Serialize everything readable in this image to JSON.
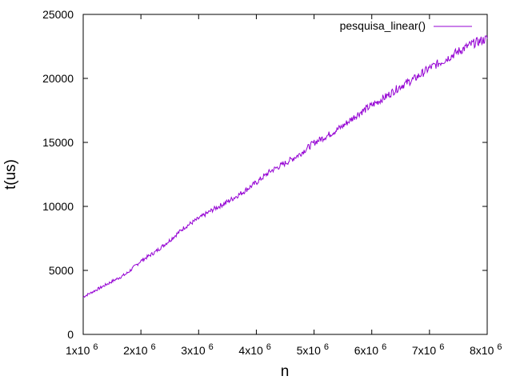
{
  "chart_data": {
    "type": "line",
    "xlabel": "n",
    "ylabel": "t(us)",
    "xlim": [
      1000000,
      8000000
    ],
    "ylim": [
      0,
      25000
    ],
    "x_ticks": [
      {
        "value": 1000000,
        "mantissa": "1x10",
        "exponent": "6"
      },
      {
        "value": 2000000,
        "mantissa": "2x10",
        "exponent": "6"
      },
      {
        "value": 3000000,
        "mantissa": "3x10",
        "exponent": "6"
      },
      {
        "value": 4000000,
        "mantissa": "4x10",
        "exponent": "6"
      },
      {
        "value": 5000000,
        "mantissa": "5x10",
        "exponent": "6"
      },
      {
        "value": 6000000,
        "mantissa": "6x10",
        "exponent": "6"
      },
      {
        "value": 7000000,
        "mantissa": "7x10",
        "exponent": "6"
      },
      {
        "value": 8000000,
        "mantissa": "8x10",
        "exponent": "6"
      }
    ],
    "y_ticks": [
      0,
      5000,
      10000,
      15000,
      20000,
      25000
    ],
    "y_tick_labels": [
      "0",
      "5000",
      "10000",
      "15000",
      "20000",
      "25000"
    ],
    "grid": false,
    "legend_position": "top-right",
    "series": [
      {
        "name": "pesquisa_linear()",
        "color": "#9400d3",
        "x": [
          1000000,
          1250000,
          1500000,
          1750000,
          2000000,
          2250000,
          2500000,
          2750000,
          3000000,
          3250000,
          3500000,
          3750000,
          4000000,
          4250000,
          4500000,
          4750000,
          5000000,
          5250000,
          5500000,
          5750000,
          6000000,
          6250000,
          6500000,
          6750000,
          7000000,
          7250000,
          7500000,
          7750000,
          8000000
        ],
        "y": [
          2900,
          3500,
          4100,
          4700,
          5700,
          6400,
          7300,
          8300,
          9000,
          9700,
          10300,
          11000,
          11800,
          12700,
          13300,
          14000,
          14900,
          15500,
          16200,
          17100,
          17800,
          18500,
          19300,
          19900,
          20700,
          21300,
          22000,
          22600,
          23000
        ]
      }
    ]
  }
}
